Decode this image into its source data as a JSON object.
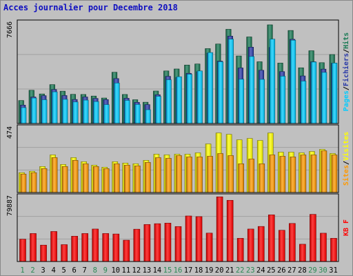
{
  "title": "Acces journalier pour Decembre 2018",
  "colors": {
    "background": "#c0c0c0",
    "hits": "#1a7a55",
    "files": "#2a3aa8",
    "pages": "#00ccff",
    "visits": "#ffff00",
    "sites": "#ff9900",
    "kbytes": "#ff0000",
    "weekday_label": "#000000",
    "weekend_label": "#2a8a55"
  },
  "chart_data": [
    {
      "type": "bar",
      "title": "Acces journalier pour Decembre 2018",
      "categories": [
        "1",
        "2",
        "3",
        "4",
        "5",
        "6",
        "7",
        "8",
        "9",
        "10",
        "11",
        "12",
        "13",
        "14",
        "15",
        "16",
        "17",
        "18",
        "19",
        "20",
        "21",
        "22",
        "23",
        "24",
        "25",
        "26",
        "27",
        "28",
        "29",
        "30",
        "31"
      ],
      "weekend": [
        "1",
        "2",
        "8",
        "9",
        "15",
        "16",
        "22",
        "23",
        "29",
        "30"
      ],
      "ymax_label": "7666",
      "ylim": [
        0,
        7666
      ],
      "legend": [
        "Pages",
        "Fichiers",
        "Hits"
      ],
      "legend_sep": "/",
      "series": [
        {
          "name": "Hits",
          "values": [
            1750,
            2530,
            2250,
            2960,
            2460,
            2220,
            2210,
            2090,
            1940,
            3900,
            2210,
            1810,
            1620,
            2470,
            4000,
            4150,
            4450,
            4530,
            5700,
            6050,
            7170,
            5140,
            6590,
            4700,
            7510,
            4600,
            7080,
            4240,
            5540,
            4630,
            5250
          ]
        },
        {
          "name": "Fichiers",
          "values": [
            1400,
            2020,
            2120,
            2590,
            2130,
            1830,
            2020,
            1910,
            1820,
            3420,
            1920,
            1610,
            1440,
            2190,
            3590,
            3500,
            3820,
            3940,
            5350,
            4750,
            6650,
            4230,
            5810,
            4050,
            5790,
            3950,
            6410,
            3620,
            4700,
            4140,
            4590
          ]
        },
        {
          "name": "Pages",
          "values": [
            1210,
            1940,
            1810,
            2410,
            1840,
            1640,
            1780,
            1670,
            1440,
            3080,
            1760,
            1450,
            1050,
            2070,
            3330,
            3560,
            3750,
            4000,
            5400,
            4700,
            6420,
            3370,
            5100,
            3360,
            6420,
            3600,
            6340,
            3230,
            4680,
            3890,
            4600
          ]
        }
      ]
    },
    {
      "type": "bar",
      "ymax_label": "474",
      "ylim": [
        0,
        474
      ],
      "legend": [
        "Sites",
        "Visites"
      ],
      "legend_sep": "/",
      "series": [
        {
          "name": "Visites",
          "values": [
            145,
            155,
            190,
            275,
            205,
            255,
            225,
            200,
            185,
            225,
            215,
            210,
            235,
            280,
            275,
            280,
            280,
            290,
            355,
            435,
            425,
            385,
            395,
            380,
            435,
            295,
            295,
            290,
            300,
            315,
            285
          ]
        },
        {
          "name": "Sites",
          "values": [
            135,
            145,
            175,
            255,
            190,
            235,
            210,
            190,
            175,
            210,
            200,
            195,
            220,
            255,
            250,
            270,
            260,
            260,
            265,
            285,
            270,
            210,
            245,
            210,
            275,
            265,
            260,
            275,
            275,
            305,
            275
          ]
        }
      ]
    },
    {
      "type": "bar",
      "ymax_label": "79887",
      "ylim": [
        0,
        79887
      ],
      "legend": [
        "KB",
        "F"
      ],
      "legend_sep": " ",
      "series": [
        {
          "name": "KB F",
          "values": [
            27500,
            34500,
            20200,
            37000,
            20800,
            31200,
            34500,
            40000,
            34500,
            33900,
            26300,
            39800,
            45600,
            46600,
            47300,
            43100,
            56100,
            55300,
            35000,
            79700,
            75400,
            28600,
            40000,
            43200,
            57500,
            38500,
            46900,
            21300,
            58100,
            34900,
            28600
          ]
        }
      ]
    }
  ]
}
